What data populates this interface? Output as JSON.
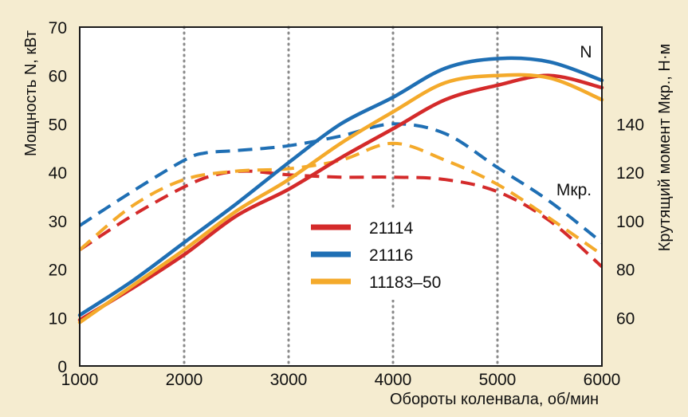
{
  "colors": {
    "background": "#f5ecd0",
    "plot_area": "#ffffff",
    "grid": "#8a8a8a",
    "text": "#111111"
  },
  "chart_data": {
    "type": "line",
    "xlabel": "Обороты коленвала, об/мин",
    "ylabel_left": "Мощность N, кВт",
    "ylabel_right": "Крутящий момент Мкр., Н·м",
    "xlim": [
      1000,
      6000
    ],
    "ylim_left": [
      0,
      70
    ],
    "ylim_right": [
      40,
      180
    ],
    "x_ticks": [
      1000,
      2000,
      3000,
      4000,
      5000,
      6000
    ],
    "y_ticks_left": [
      0,
      10,
      20,
      30,
      40,
      50,
      60,
      70
    ],
    "y_ticks_right": [
      60,
      80,
      100,
      120,
      140
    ],
    "grid": "vertical dotted lines at x ticks",
    "legend_position": "center",
    "curve_labels": {
      "power": "N",
      "torque": "Мкр."
    },
    "series": [
      {
        "name": "21114",
        "color": "#d42a2a",
        "power": {
          "x": [
            1000,
            1500,
            2000,
            2500,
            3000,
            3500,
            4000,
            4500,
            5000,
            5500,
            6000
          ],
          "y": [
            9.5,
            16,
            23,
            31,
            36.5,
            43,
            49,
            55,
            58,
            60,
            57.5
          ]
        },
        "torque": {
          "x": [
            1000,
            1500,
            2000,
            2300,
            2600,
            3000,
            3500,
            4000,
            4500,
            5000,
            5500,
            6000
          ],
          "y": [
            88,
            102,
            114,
            119,
            120.5,
            119,
            118,
            118,
            117,
            112,
            100,
            81
          ]
        }
      },
      {
        "name": "21116",
        "color": "#1f6fb4",
        "power": {
          "x": [
            1000,
            1500,
            2000,
            2500,
            3000,
            3500,
            4000,
            4500,
            5000,
            5500,
            6000
          ],
          "y": [
            10.5,
            17.5,
            25.5,
            33.5,
            42,
            50,
            55.5,
            61.5,
            63.5,
            62.8,
            59
          ]
        },
        "torque": {
          "x": [
            1000,
            1500,
            2000,
            2200,
            2500,
            3000,
            3500,
            4000,
            4500,
            5000,
            5500,
            6000
          ],
          "y": [
            98,
            112,
            125,
            128,
            129,
            131,
            135,
            140,
            136,
            122,
            108,
            91
          ]
        }
      },
      {
        "name": "11183–50",
        "color": "#f4aa2b",
        "power": {
          "x": [
            1000,
            1500,
            2000,
            2500,
            3000,
            3500,
            4000,
            4500,
            5000,
            5500,
            6000
          ],
          "y": [
            9,
            16.5,
            24,
            32,
            38.5,
            46,
            52.5,
            58.5,
            60,
            59.5,
            55
          ]
        },
        "torque": {
          "x": [
            1000,
            1500,
            2000,
            2500,
            3000,
            3500,
            4000,
            4500,
            5000,
            5500,
            6000
          ],
          "y": [
            88,
            106,
            117,
            120.5,
            121.5,
            125,
            132,
            125,
            115,
            101,
            86
          ]
        }
      }
    ]
  }
}
